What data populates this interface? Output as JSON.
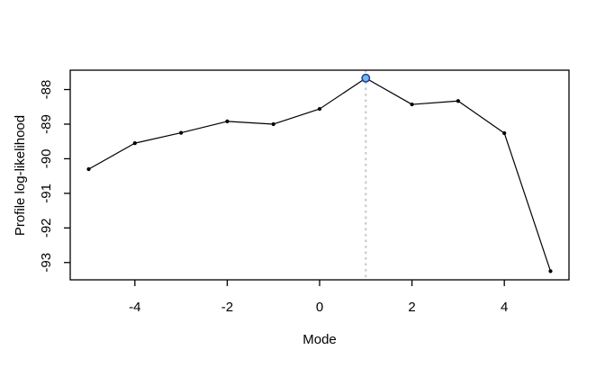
{
  "figure": {
    "background": "#ffffff",
    "frame_color": "#000000",
    "text_color": "#000000"
  },
  "chart_data": {
    "type": "line",
    "title": "",
    "xlabel": "Mode",
    "ylabel": "Profile log-likelihood",
    "x": [
      -5,
      -4,
      -3,
      -2,
      -1,
      0,
      1,
      2,
      3,
      4,
      5
    ],
    "y": [
      -90.3,
      -89.55,
      -89.25,
      -88.92,
      -89.0,
      -88.56,
      -87.67,
      -88.43,
      -88.33,
      -89.26,
      -93.25
    ],
    "xlim": [
      -5.4,
      5.4
    ],
    "ylim": [
      -93.5,
      -87.44
    ],
    "x_ticks": [
      -4,
      -2,
      0,
      2,
      4
    ],
    "y_ticks": [
      -93,
      -92,
      -91,
      -90,
      -89,
      -88
    ],
    "grid": false,
    "legend": null,
    "line_color": "#000000",
    "point_color": "#000000",
    "highlight_point": {
      "x": 1,
      "y": -87.67,
      "fill": "#6fb8e9",
      "stroke": "#1f3d99"
    },
    "vline": {
      "x": 1,
      "style": "dotted",
      "color": "#c6c6c6"
    }
  }
}
